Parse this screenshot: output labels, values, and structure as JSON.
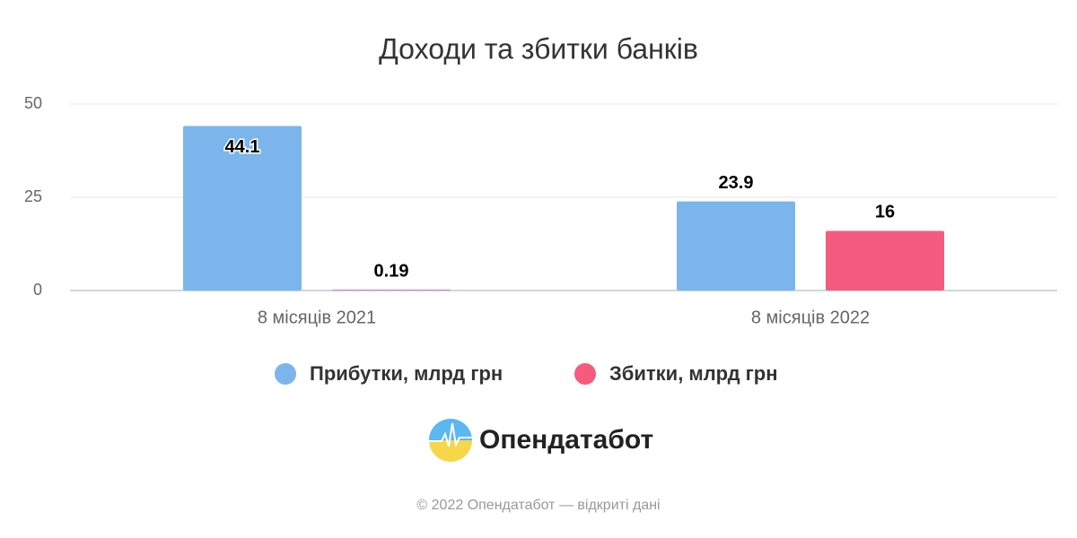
{
  "chart_data": {
    "type": "bar",
    "title": "Доходи та збитки банків",
    "categories": [
      "8 місяців 2021",
      "8 місяців 2022"
    ],
    "series": [
      {
        "name": "Прибутки, млрд грн",
        "color": "#7cb5ec",
        "values": [
          44.1,
          23.9
        ]
      },
      {
        "name": "Збитки, млрд грн",
        "color": "#f45b7f",
        "values": [
          0.19,
          16
        ]
      }
    ],
    "ylim": [
      0,
      50
    ],
    "yticks": [
      0,
      25,
      50
    ],
    "grid": true,
    "legend": "bottom"
  },
  "branding": {
    "logo": "Опендатабот",
    "footer": "© 2022 Опендатабот — відкриті дані"
  }
}
